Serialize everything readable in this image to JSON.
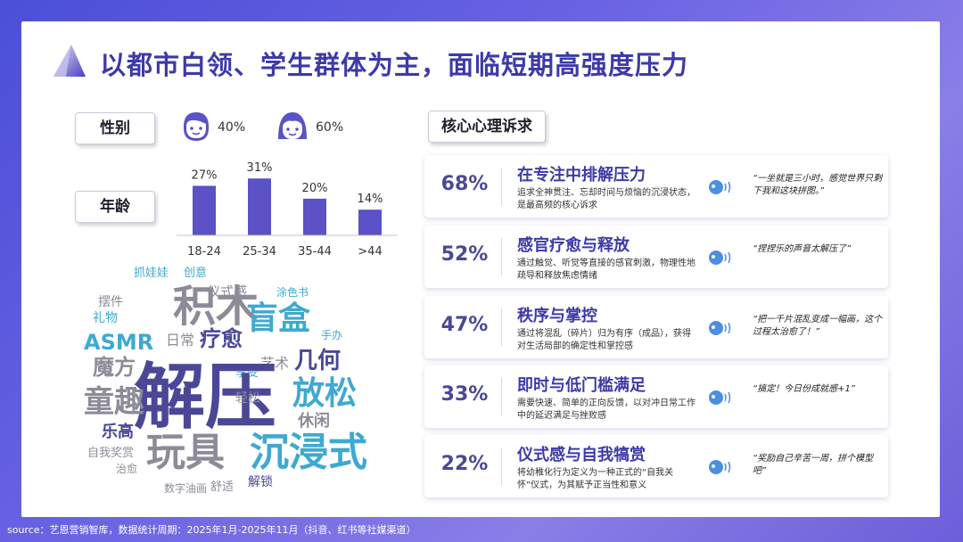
{
  "title": "以都市白领、学生群体为主，面临短期高强度压力",
  "gender": {
    "label": "性别",
    "male_pct": "40%",
    "female_pct": "60%"
  },
  "age": {
    "label": "年龄"
  },
  "chart_data": {
    "type": "bar",
    "categories": [
      "18-24",
      "25-34",
      "35-44",
      ">44"
    ],
    "values": [
      27,
      31,
      20,
      14
    ],
    "value_labels": [
      "27%",
      "31%",
      "20%",
      "14%"
    ],
    "title": "",
    "xlabel": "",
    "ylabel": "",
    "ylim": [
      0,
      35
    ],
    "bar_color": "#5a52c6"
  },
  "word_cloud": [
    "抓娃娃",
    "创意",
    "仪式感",
    "涂色书",
    "摆件",
    "积木",
    "礼物",
    "盲盒",
    "ASMR",
    "日常",
    "疗愈",
    "手办",
    "艺术",
    "享受",
    "几何",
    "魔方",
    "解压",
    "放松",
    "童趣",
    "轻松",
    "休闲",
    "乐高",
    "自我奖赏",
    "玩具",
    "沉浸式",
    "治愈",
    "数字油画",
    "舒适",
    "解锁"
  ],
  "needs": {
    "label": "核心心理诉求",
    "items": [
      {
        "pct": "68%",
        "title": "在专注中排解压力",
        "desc": "追求全神贯注、忘却时间与烦恼的沉浸状态，是最高频的核心诉求",
        "quote": "“一坐就是三小时，感觉世界只剩下我和这块拼图。”"
      },
      {
        "pct": "52%",
        "title": "感官疗愈与释放",
        "desc": "通过触觉、听觉等直接的感官刺激，物理性地疏导和释放焦虑情绪",
        "quote": "“捏捏乐的声音太解压了”"
      },
      {
        "pct": "47%",
        "title": "秩序与掌控",
        "desc": "通过将混乱（碎片）归为有序（成品），获得对生活局部的确定性和掌控感",
        "quote": "“把一千片混乱变成一幅画，这个过程太治愈了！”"
      },
      {
        "pct": "33%",
        "title": "即时与低门槛满足",
        "desc": "需要快速、简单的正向反馈，以对冲日常工作中的延迟满足与挫败感",
        "quote": "“搞定！今日份成就感+1”"
      },
      {
        "pct": "22%",
        "title": "仪式感与自我犒赏",
        "desc": "将幼稚化行为定义为一种正式的“自我关怀”仪式，为其赋予正当性和意义",
        "quote": "“奖励自己辛苦一周，拼个模型吧”"
      }
    ]
  },
  "source": "source：艺恩营销智库，数据统计周期：2025年1月-2025年11月（抖音、红书等社媒渠道）",
  "colors": {
    "accent": "#3d3aa8",
    "bar": "#5a52c6",
    "cloud_gray": "#8c8c99",
    "cloud_blue": "#3fa9cf",
    "cloud_purple": "#4a4896"
  }
}
